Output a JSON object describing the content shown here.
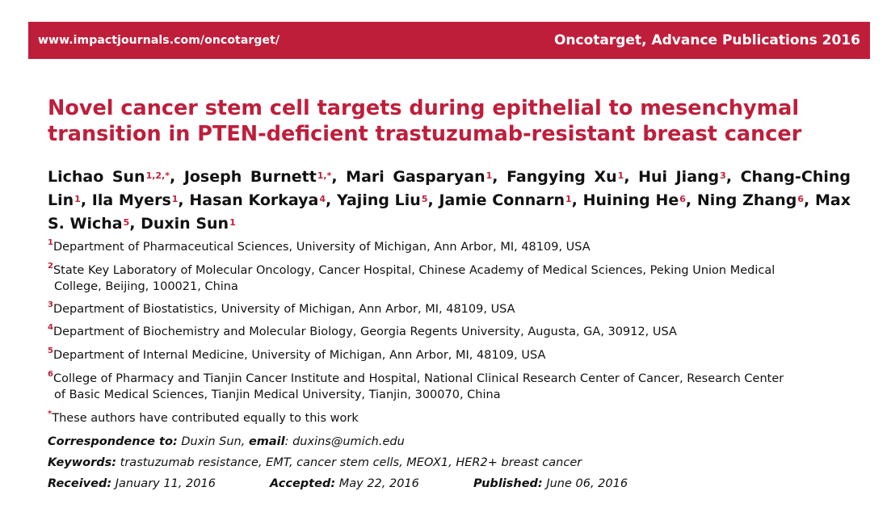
{
  "banner": {
    "url": "www.impactjournals.com/oncotarget/",
    "publication": "Oncotarget, Advance Publications 2016"
  },
  "title": "Novel cancer stem cell targets during epithelial to mesenchymal transition in PTEN-deficient trastuzumab-resistant breast cancer",
  "authors": [
    {
      "name": "Lichao Sun",
      "sup": "1,2,*"
    },
    {
      "name": "Joseph Burnett",
      "sup": "1,*"
    },
    {
      "name": "Mari Gasparyan",
      "sup": "1"
    },
    {
      "name": "Fangying Xu",
      "sup": "1"
    },
    {
      "name": "Hui Jiang",
      "sup": "3"
    },
    {
      "name": "Chang-Ching Lin",
      "sup": "1"
    },
    {
      "name": "Ila Myers",
      "sup": "1"
    },
    {
      "name": "Hasan Korkaya",
      "sup": "4"
    },
    {
      "name": "Yajing Liu",
      "sup": "5"
    },
    {
      "name": "Jamie Connarn",
      "sup": "1"
    },
    {
      "name": "Huining He",
      "sup": "6"
    },
    {
      "name": "Ning Zhang",
      "sup": "6"
    },
    {
      "name": "Max S. Wicha",
      "sup": "5"
    },
    {
      "name": "Duxin Sun",
      "sup": "1"
    }
  ],
  "affiliations": [
    {
      "num": "1",
      "line1": "Department of Pharmaceutical Sciences, University of Michigan, Ann Arbor, MI, 48109, USA",
      "line2": ""
    },
    {
      "num": "2",
      "line1": "State Key Laboratory of Molecular Oncology, Cancer Hospital, Chinese Academy of Medical Sciences, Peking Union Medical",
      "line2": "College, Beijing, 100021, China"
    },
    {
      "num": "3",
      "line1": "Department of Biostatistics, University of Michigan, Ann Arbor, MI, 48109, USA",
      "line2": ""
    },
    {
      "num": "4",
      "line1": "Department of Biochemistry and Molecular Biology, Georgia Regents University, Augusta, GA, 30912, USA",
      "line2": ""
    },
    {
      "num": "5",
      "line1": "Department of Internal Medicine, University of Michigan, Ann Arbor, MI, 48109, USA",
      "line2": ""
    },
    {
      "num": "6",
      "line1": "College of Pharmacy and Tianjin Cancer Institute and Hospital, National Clinical Research Center of Cancer, Research Center",
      "line2": "of Basic Medical Sciences, Tianjin Medical University, Tianjin, 300070, China"
    },
    {
      "num": "*",
      "line1": "These authors have contributed equally to this work",
      "line2": ""
    }
  ],
  "correspondence": {
    "label": "Correspondence to:",
    "name": "Duxin Sun,",
    "email_label": "email",
    "email": ": duxins@umich.edu"
  },
  "keywords": {
    "label": "Keywords:",
    "value": "trastuzumab resistance, EMT, cancer stem cells, MEOX1, HER2+ breast cancer"
  },
  "dates": {
    "received_label": "Received:",
    "received": "January 11, 2016",
    "accepted_label": "Accepted:",
    "accepted": "May 22, 2016",
    "published_label": "Published:",
    "published": "June 06, 2016"
  },
  "colors": {
    "accent": "#bf1e3b",
    "text": "#111111",
    "background": "#ffffff"
  }
}
